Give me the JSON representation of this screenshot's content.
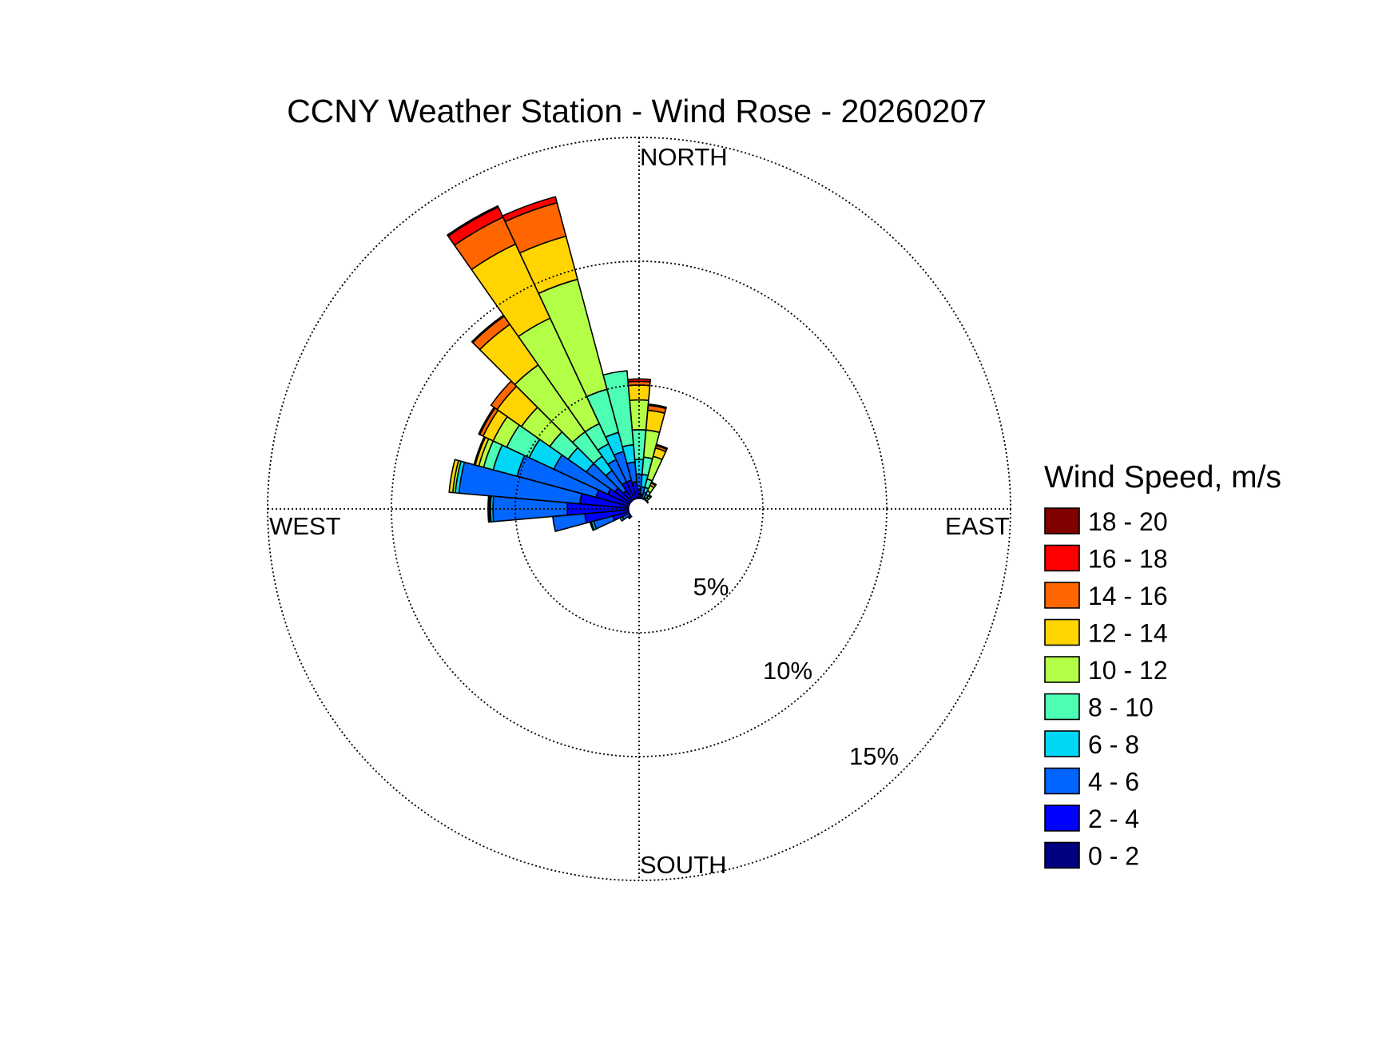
{
  "chart_data": {
    "type": "wind_rose",
    "title": "CCNY Weather Station - Wind Rose - 20260207",
    "directions": {
      "north": "NORTH",
      "south": "SOUTH",
      "east": "EAST",
      "west": "WEST"
    },
    "radial_axis": {
      "unit": "%",
      "rings": [
        5,
        10,
        15
      ],
      "ring_labels": [
        "5%",
        "10%",
        "15%"
      ],
      "max": 15,
      "ring_label_bearing_deg": 150
    },
    "legend": {
      "title": "Wind Speed, m/s",
      "position": "right",
      "bins": [
        {
          "label": "18 - 20",
          "color": "#800000"
        },
        {
          "label": "16 - 18",
          "color": "#FF0000"
        },
        {
          "label": "14 - 16",
          "color": "#FF6600"
        },
        {
          "label": "12 - 14",
          "color": "#FFD400"
        },
        {
          "label": "10 - 12",
          "color": "#B3FF47"
        },
        {
          "label": "8 - 10",
          "color": "#4DFFB3"
        },
        {
          "label": "6 - 8",
          "color": "#00D7F5"
        },
        {
          "label": "4 - 6",
          "color": "#0066FF"
        },
        {
          "label": "2 - 4",
          "color": "#0000FF"
        },
        {
          "label": "0 - 2",
          "color": "#000080"
        }
      ]
    },
    "sector_width_deg": 10,
    "calm_circle_percent": 0.4,
    "series_order": [
      "0 - 2",
      "2 - 4",
      "4 - 6",
      "6 - 8",
      "8 - 10",
      "10 - 12",
      "12 - 14",
      "14 - 16",
      "16 - 18",
      "18 - 20"
    ],
    "sectors": [
      {
        "direction_deg": 0,
        "cumulative": [
          0.3,
          0.8,
          1.4,
          2.0,
          3.2,
          4.4,
          5.0,
          5.15,
          5.25,
          5.25
        ]
      },
      {
        "direction_deg": 10,
        "cumulative": [
          0.3,
          0.6,
          0.9,
          1.4,
          2.1,
          3.2,
          4.0,
          4.2,
          4.25,
          4.25
        ]
      },
      {
        "direction_deg": 20,
        "cumulative": [
          0.25,
          0.45,
          0.7,
          0.9,
          1.25,
          2.2,
          2.55,
          2.65,
          2.7,
          2.7
        ]
      },
      {
        "direction_deg": 30,
        "cumulative": [
          0.2,
          0.35,
          0.5,
          0.65,
          0.8,
          1.05,
          1.15,
          1.2,
          1.2,
          1.2
        ]
      },
      {
        "direction_deg": 40,
        "cumulative": [
          0.15,
          0.25,
          0.35,
          0.45,
          0.55,
          0.65,
          0.7,
          0.7,
          0.7,
          0.7
        ]
      },
      {
        "direction_deg": 50,
        "cumulative": [
          0.15,
          0.2,
          0.3,
          0.35,
          0.4,
          0.45,
          0.45,
          0.45,
          0.45,
          0.45
        ]
      },
      {
        "direction_deg": 60,
        "cumulative": [
          0.1,
          0.2,
          0.3,
          0.3,
          0.35,
          0.35,
          0.35,
          0.35,
          0.35,
          0.35
        ]
      },
      {
        "direction_deg": 70,
        "cumulative": [
          0.1,
          0.15,
          0.2,
          0.2,
          0.2,
          0.2,
          0.2,
          0.2,
          0.2,
          0.2
        ]
      },
      {
        "direction_deg": 80,
        "cumulative": [
          0.1,
          0.15,
          0.2,
          0.2,
          0.2,
          0.2,
          0.2,
          0.2,
          0.2,
          0.2
        ]
      },
      {
        "direction_deg": 90,
        "cumulative": [
          0.1,
          0.2,
          0.25,
          0.3,
          0.3,
          0.3,
          0.3,
          0.3,
          0.3,
          0.3
        ]
      },
      {
        "direction_deg": 100,
        "cumulative": [
          0.1,
          0.15,
          0.2,
          0.2,
          0.2,
          0.2,
          0.2,
          0.2,
          0.2,
          0.2
        ]
      },
      {
        "direction_deg": 110,
        "cumulative": [
          0.1,
          0.15,
          0.15,
          0.15,
          0.15,
          0.15,
          0.15,
          0.15,
          0.15,
          0.15
        ]
      },
      {
        "direction_deg": 120,
        "cumulative": [
          0.1,
          0.1,
          0.1,
          0.1,
          0.1,
          0.1,
          0.1,
          0.1,
          0.1,
          0.1
        ]
      },
      {
        "direction_deg": 130,
        "cumulative": [
          0.1,
          0.15,
          0.15,
          0.15,
          0.15,
          0.15,
          0.15,
          0.15,
          0.15,
          0.15
        ]
      },
      {
        "direction_deg": 140,
        "cumulative": [
          0.1,
          0.15,
          0.15,
          0.15,
          0.15,
          0.15,
          0.15,
          0.15,
          0.15,
          0.15
        ]
      },
      {
        "direction_deg": 150,
        "cumulative": [
          0.05,
          0.1,
          0.1,
          0.1,
          0.1,
          0.1,
          0.1,
          0.1,
          0.1,
          0.1
        ]
      },
      {
        "direction_deg": 160,
        "cumulative": [
          0.1,
          0.15,
          0.15,
          0.15,
          0.15,
          0.15,
          0.15,
          0.15,
          0.15,
          0.15
        ]
      },
      {
        "direction_deg": 170,
        "cumulative": [
          0.1,
          0.15,
          0.15,
          0.15,
          0.15,
          0.15,
          0.15,
          0.15,
          0.15,
          0.15
        ]
      },
      {
        "direction_deg": 180,
        "cumulative": [
          0.15,
          0.2,
          0.2,
          0.2,
          0.2,
          0.2,
          0.2,
          0.2,
          0.2,
          0.2
        ]
      },
      {
        "direction_deg": 190,
        "cumulative": [
          0.1,
          0.15,
          0.15,
          0.15,
          0.15,
          0.15,
          0.15,
          0.15,
          0.15,
          0.15
        ]
      },
      {
        "direction_deg": 200,
        "cumulative": [
          0.1,
          0.15,
          0.2,
          0.2,
          0.2,
          0.2,
          0.2,
          0.2,
          0.2,
          0.2
        ]
      },
      {
        "direction_deg": 210,
        "cumulative": [
          0.15,
          0.2,
          0.25,
          0.3,
          0.3,
          0.3,
          0.3,
          0.3,
          0.3,
          0.3
        ]
      },
      {
        "direction_deg": 220,
        "cumulative": [
          0.1,
          0.2,
          0.25,
          0.25,
          0.25,
          0.25,
          0.25,
          0.25,
          0.25,
          0.25
        ]
      },
      {
        "direction_deg": 230,
        "cumulative": [
          0.2,
          0.35,
          0.5,
          0.55,
          0.55,
          0.55,
          0.55,
          0.55,
          0.55,
          0.55
        ]
      },
      {
        "direction_deg": 240,
        "cumulative": [
          0.25,
          0.45,
          0.75,
          0.85,
          0.85,
          0.85,
          0.85,
          0.85,
          0.85,
          0.85
        ]
      },
      {
        "direction_deg": 250,
        "cumulative": [
          0.3,
          1.1,
          1.9,
          2.0,
          2.05,
          2.05,
          2.05,
          2.05,
          2.05,
          2.05
        ]
      },
      {
        "direction_deg": 260,
        "cumulative": [
          0.35,
          2.2,
          3.5,
          3.5,
          3.5,
          3.5,
          3.5,
          3.5,
          3.5,
          3.5
        ]
      },
      {
        "direction_deg": 270,
        "cumulative": [
          0.45,
          2.9,
          5.9,
          6.0,
          6.05,
          6.1,
          6.1,
          6.1,
          6.1,
          6.1
        ]
      },
      {
        "direction_deg": 280,
        "cumulative": [
          0.4,
          2.4,
          7.3,
          7.45,
          7.45,
          7.55,
          7.7,
          7.7,
          7.7,
          7.7
        ]
      },
      {
        "direction_deg": 290,
        "cumulative": [
          0.35,
          1.8,
          5.1,
          6.1,
          6.5,
          6.7,
          6.85,
          6.9,
          6.9,
          6.9
        ]
      },
      {
        "direction_deg": 300,
        "cumulative": [
          0.35,
          1.4,
          3.8,
          4.9,
          5.9,
          6.5,
          6.95,
          7.1,
          7.15,
          7.15
        ]
      },
      {
        "direction_deg": 310,
        "cumulative": [
          0.35,
          1.2,
          2.6,
          3.5,
          4.4,
          5.8,
          7.0,
          7.3,
          7.3,
          7.3
        ]
      },
      {
        "direction_deg": 320,
        "cumulative": [
          0.3,
          0.9,
          1.9,
          2.6,
          3.8,
          7.1,
          9.1,
          9.5,
          9.55,
          9.55
        ]
      },
      {
        "direction_deg": 330,
        "cumulative": [
          0.35,
          1.2,
          2.2,
          2.9,
          3.8,
          8.5,
          11.8,
          13.0,
          13.45,
          13.5
        ]
      },
      {
        "direction_deg": 340,
        "cumulative": [
          0.35,
          1.2,
          2.4,
          3.2,
          5.0,
          9.6,
          11.4,
          12.8,
          13.05,
          13.05
        ]
      },
      {
        "direction_deg": 350,
        "cumulative": [
          0.35,
          1.1,
          1.9,
          2.6,
          5.6,
          5.6,
          5.6,
          5.6,
          5.6,
          5.6
        ]
      }
    ]
  }
}
